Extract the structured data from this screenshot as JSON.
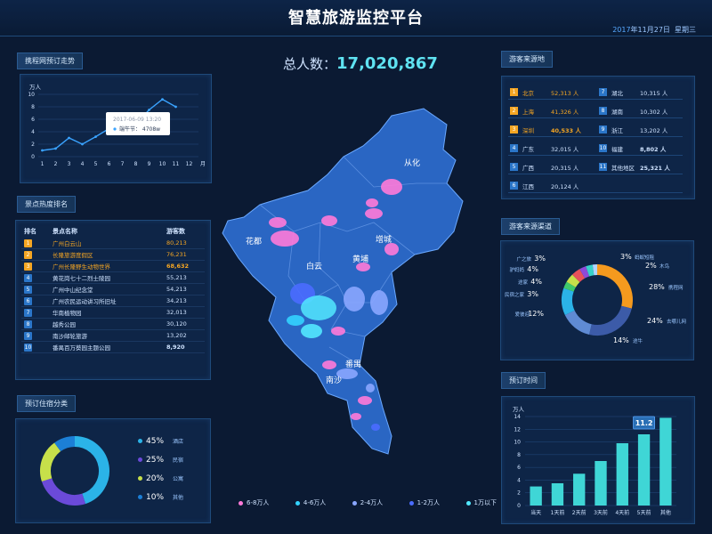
{
  "header": {
    "title": "智慧旅游监控平台",
    "date_year": "2017",
    "date_rest": "年11月27日",
    "weekday": "星期三"
  },
  "total": {
    "label": "总人数：",
    "value": "17,020,867"
  },
  "panels": {
    "trend": "携程网预订走势",
    "hot_spots": "景点热度排名",
    "lodging": "预订住宿分类",
    "source_region": "游客来源地",
    "source_channel": "游客来源渠道",
    "booking_time": "预订时间"
  },
  "trend_tooltip": {
    "date": "2017-06-09  13:20",
    "text": "端午节： 4708w"
  },
  "hot_spots": {
    "headers": [
      "排名",
      "景点名称",
      "游客数"
    ],
    "rows": [
      {
        "rank": "1",
        "name": "广州白云山",
        "value": "80,213"
      },
      {
        "rank": "2",
        "name": "长隆旅游度假区",
        "value": "76,231"
      },
      {
        "rank": "3",
        "name": "广州长隆野生动物世界",
        "value": "68,632"
      },
      {
        "rank": "4",
        "name": "黄花岗七十二烈士陵园",
        "value": "55,213"
      },
      {
        "rank": "5",
        "name": "广州中山纪念堂",
        "value": "54,213"
      },
      {
        "rank": "6",
        "name": "广州农民运动讲习所旧址",
        "value": "34,213"
      },
      {
        "rank": "7",
        "name": "华南植物园",
        "value": "32,013"
      },
      {
        "rank": "8",
        "name": "越秀公园",
        "value": "30,120"
      },
      {
        "rank": "9",
        "name": "南沙邮轮旅游",
        "value": "13,202"
      },
      {
        "rank": "10",
        "name": "番禺百万葵园主题公园",
        "value": "8,920"
      }
    ]
  },
  "lodging": [
    {
      "pct": "45%",
      "label": "酒店",
      "color": "#2bb3e8"
    },
    {
      "pct": "25%",
      "label": "民宿",
      "color": "#6b4ad9"
    },
    {
      "pct": "20%",
      "label": "公寓",
      "color": "#c7e04a"
    },
    {
      "pct": "10%",
      "label": "其他",
      "color": "#1c7fd6"
    }
  ],
  "source_region": [
    {
      "n": "1",
      "name": "北京",
      "value": "52,313 人"
    },
    {
      "n": "2",
      "name": "上海",
      "value": "41,326 人"
    },
    {
      "n": "3",
      "name": "深圳",
      "value": "40,533 人"
    },
    {
      "n": "4",
      "name": "广东",
      "value": "32,015 人"
    },
    {
      "n": "5",
      "name": "广西",
      "value": "20,315 人"
    },
    {
      "n": "6",
      "name": "江西",
      "value": "20,124 人"
    },
    {
      "n": "7",
      "name": "湖北",
      "value": "10,315 人"
    },
    {
      "n": "8",
      "name": "湖南",
      "value": "10,302 人"
    },
    {
      "n": "9",
      "name": "浙江",
      "value": "13,202 人"
    },
    {
      "n": "10",
      "name": "福建",
      "value": "8,802 人"
    },
    {
      "n": "11",
      "name": "其他地区",
      "value": "25,321 人"
    }
  ],
  "map_labels": [
    "从化",
    "花都",
    "增城",
    "白云",
    "黄埔",
    "番禺",
    "南沙"
  ],
  "map_legend": [
    {
      "label": "6-8万人",
      "color": "#ff7ad9"
    },
    {
      "label": "4-6万人",
      "color": "#33d3ff"
    },
    {
      "label": "2-4万人",
      "color": "#8aa6ff"
    },
    {
      "label": "1-2万人",
      "color": "#4a6cff"
    },
    {
      "label": "1万以下",
      "color": "#52e8ff"
    }
  ],
  "channel_labels": [
    {
      "pct": "3%",
      "name": "广之旅"
    },
    {
      "pct": "4%",
      "name": "驴妈妈"
    },
    {
      "pct": "4%",
      "name": "途家"
    },
    {
      "pct": "3%",
      "name": "民宿之家"
    },
    {
      "pct": "12%",
      "name": "爱彼迎"
    },
    {
      "pct": "3%",
      "name": "蚂蚁短租"
    },
    {
      "pct": "2%",
      "name": "木鸟"
    },
    {
      "pct": "28%",
      "name": "携程网"
    },
    {
      "pct": "24%",
      "name": "去哪儿网"
    },
    {
      "pct": "14%",
      "name": "途牛"
    }
  ],
  "chart_data": [
    {
      "type": "line",
      "title": "携程网预订走势",
      "ylabel": "万人",
      "xlabel": "月",
      "x": [
        "1",
        "2",
        "3",
        "4",
        "5",
        "6",
        "7",
        "8",
        "9",
        "10",
        "11",
        "12"
      ],
      "values": [
        1,
        1.3,
        3,
        2,
        3.2,
        4.5,
        5,
        5.2,
        7.5,
        9.2,
        8,
        null
      ],
      "ylim": [
        0,
        10
      ],
      "yticks": [
        "0",
        "2",
        "4",
        "6",
        "8",
        "10"
      ]
    },
    {
      "type": "bar",
      "title": "预订时间",
      "ylabel": "万人",
      "categories": [
        "当天",
        "1天前",
        "2天前",
        "3天前",
        "4天前",
        "5天前",
        "其他"
      ],
      "values": [
        3,
        3.5,
        5,
        7,
        9.8,
        11.2,
        13.8
      ],
      "ylim": [
        0,
        14
      ],
      "yticks": [
        "0",
        "2",
        "4",
        "6",
        "8",
        "10",
        "12",
        "14"
      ],
      "highlight": "11.2"
    },
    {
      "type": "pie",
      "title": "游客来源渠道",
      "values": [
        28,
        24,
        14,
        12,
        3,
        4,
        4,
        3,
        3,
        2
      ],
      "colors": [
        "#f59a1e",
        "#3c5ba8",
        "#5f8bd4",
        "#2bb3e8",
        "#3fc96b",
        "#c7e04a",
        "#e8515b",
        "#8e4ad9",
        "#37d2c9",
        "#b0d5ff"
      ]
    },
    {
      "type": "pie",
      "title": "预订住宿分类",
      "values": [
        45,
        25,
        20,
        10
      ],
      "colors": [
        "#2bb3e8",
        "#6b4ad9",
        "#c7e04a",
        "#1c7fd6"
      ]
    }
  ]
}
